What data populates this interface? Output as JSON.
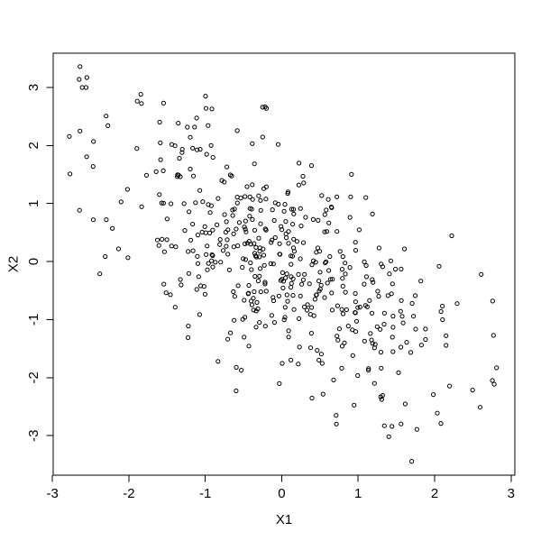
{
  "page": {
    "background_color": "#ffffff",
    "foreground_color": "#000000"
  },
  "chart_data": {
    "type": "scatter",
    "title": "",
    "xlabel": "X1",
    "ylabel": "X2",
    "x_ticks": [
      -3,
      -2,
      -1,
      0,
      1,
      2,
      3
    ],
    "x_tick_labels": [
      "-3",
      "-2",
      "-1",
      "0",
      "1",
      "2",
      "3"
    ],
    "y_ticks": [
      -3,
      -2,
      -1,
      0,
      1,
      2,
      3
    ],
    "y_tick_labels": [
      "-3",
      "-2",
      "-1",
      "0",
      "1",
      "2",
      "3"
    ],
    "xlim": [
      -2.99,
      3.05
    ],
    "ylim": [
      -3.68,
      3.59
    ],
    "grid": false,
    "legend": null,
    "frame": "full-box",
    "marker": {
      "shape": "open-circle",
      "color": "#000000",
      "radius_px": 2.1
    },
    "n_points": 500,
    "distribution": {
      "kind": "bivariate-normal",
      "mean": [
        0,
        0
      ],
      "sd": [
        1.05,
        1.18
      ],
      "rho": -0.58,
      "seed": 20240605,
      "x_range": [
        -2.8,
        2.82
      ],
      "y_range": [
        -3.45,
        3.37
      ]
    },
    "landmark_points": [
      [
        -2.64,
        3.36
      ],
      [
        -2.65,
        3.14
      ],
      [
        -2.55,
        3.17
      ],
      [
        -2.61,
        3.0
      ],
      [
        -2.56,
        3.0
      ],
      [
        -2.64,
        2.25
      ],
      [
        -2.77,
        1.51
      ],
      [
        -0.99,
        2.64
      ],
      [
        -0.25,
        2.66
      ],
      [
        -0.2,
        2.64
      ],
      [
        1.7,
        -3.44
      ],
      [
        2.61,
        -0.22
      ],
      [
        2.76,
        -0.68
      ],
      [
        2.77,
        -1.27
      ],
      [
        2.81,
        -1.83
      ]
    ]
  }
}
